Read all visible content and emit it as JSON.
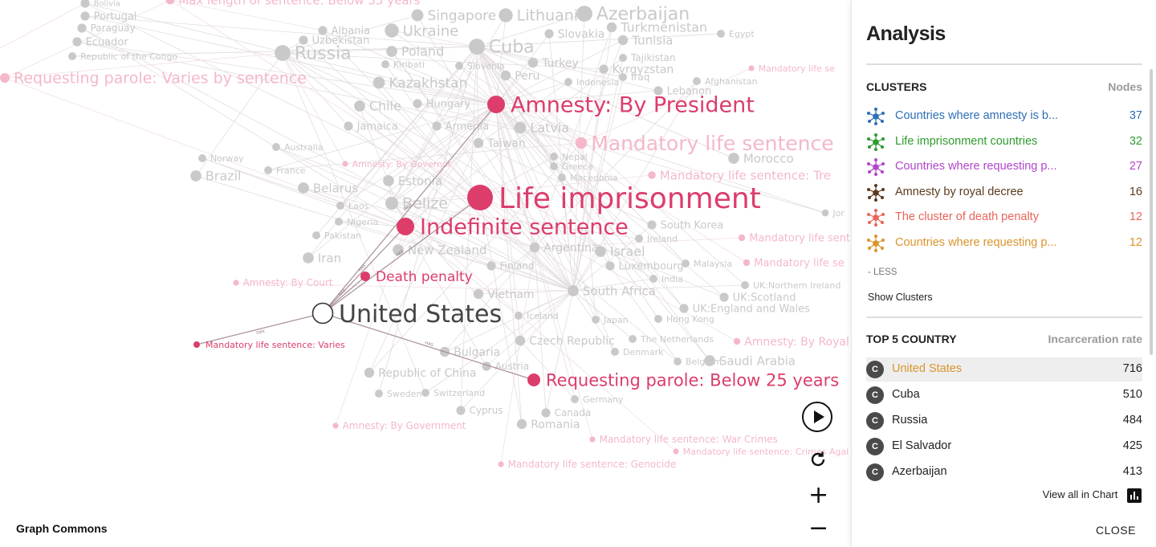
{
  "brand": "Graph Commons",
  "graph": {
    "highlight_color": "#dc3d6a",
    "faded_pink": "#f4b8c8",
    "faded_gray": "#c9c9c9",
    "focus_node": "United States",
    "highlight_nodes": [
      "Amnesty: By President",
      "Life imprisonment",
      "Indefinite sentence",
      "Death penalty",
      "Mandatory life sentence: Varies",
      "Requesting parole: Below 25 years"
    ],
    "edge_labels": [
      "HAS",
      "HAS",
      "HAS",
      "HAS",
      "HAS",
      "HAS"
    ],
    "pink_labels": [
      "Max length of sentence: Below 35 years",
      "Requesting parole: Varies by sentence",
      "Mandatory life sentence",
      "Mandatory life sentence: Tre",
      "Mandatory life sentence",
      "Mandatory life se",
      "Mandatory life se",
      "Amnesty: By Governor",
      "Amnesty: By Court",
      "Amnesty: By Royal",
      "Amnesty: By Government",
      "Mandatory life sentence: War Crimes",
      "Mandatory life sentence: Crimes Agai",
      "Mandatory life sentence: Genocide"
    ],
    "gray_labels": [
      "Bolivia",
      "Portugal",
      "Paraguay",
      "Ecuador",
      "Republic of the Congo",
      "Singapore",
      "Lithuania",
      "Azerbaijan",
      "Turkmenistan",
      "Albania",
      "Ukraine",
      "Slovakia",
      "Tunisia",
      "Egypt",
      "Uzbekistan",
      "Cuba",
      "Russia",
      "Poland",
      "Kiribati",
      "Turkey",
      "Tajikistan",
      "Slovenia",
      "Peru",
      "Kyrgyzstan",
      "Indonesia",
      "Iraq",
      "Afghanistan",
      "Kazakhstan",
      "Lebanon",
      "Chile",
      "Hungary",
      "Latvia",
      "Jamaica",
      "Armenia",
      "Taiwan",
      "Australia",
      "Nepal",
      "Greece",
      "Norway",
      "France",
      "Morocco",
      "Brazil",
      "Estonia",
      "Macedonia",
      "Belarus",
      "Belize",
      "Laos",
      "Nigeria",
      "Jor",
      "Pakistan",
      "South Korea",
      "Ireland",
      "Argentina",
      "Israel",
      "New Zealand",
      "Iran",
      "Finland",
      "Luxembourg",
      "Malaysia",
      "India",
      "South Africa",
      "UK:Northern Ireland",
      "Vietnam",
      "UK:Scotland",
      "UK:England and Wales",
      "Iceland",
      "Japan",
      "Hong Kong",
      "The Netherlands",
      "Czech Republic",
      "Denmark",
      "Bulgaria",
      "Belgium",
      "Saudi Arabia",
      "Austria",
      "Republic of China",
      "Sweden",
      "Switzerland",
      "Germany",
      "Cyprus",
      "Canada",
      "Romania"
    ]
  },
  "controls": {
    "play_icon": "play-icon",
    "refresh_icon": "refresh-icon",
    "zoom_in": "+",
    "zoom_out": "−"
  },
  "panel": {
    "title": "Analysis",
    "clusters_header": "CLUSTERS",
    "clusters_col": "Nodes",
    "clusters": [
      {
        "name": "Countries where amnesty is b...",
        "count": "37",
        "color": "#2e6fb5"
      },
      {
        "name": "Life imprisonment countries",
        "count": "32",
        "color": "#2f9a2f"
      },
      {
        "name": "Countries where requesting p...",
        "count": "27",
        "color": "#b046c9"
      },
      {
        "name": "Amnesty by royal decree",
        "count": "16",
        "color": "#5b3a1e"
      },
      {
        "name": "The cluster of death penalty",
        "count": "12",
        "color": "#e8655a"
      },
      {
        "name": "Countries where requesting p...",
        "count": "12",
        "color": "#d9952d"
      }
    ],
    "less_label": "- LESS",
    "show_clusters": "Show Clusters",
    "top_header": "TOP 5 COUNTRY",
    "top_col": "Incarceration rate",
    "badge_letter": "C",
    "top": [
      {
        "name": "United States",
        "value": "716",
        "selected": true
      },
      {
        "name": "Cuba",
        "value": "510"
      },
      {
        "name": "Russia",
        "value": "484"
      },
      {
        "name": "El Salvador",
        "value": "425"
      },
      {
        "name": "Azerbaijan",
        "value": "413"
      }
    ],
    "top_selected_color": "#d9952d",
    "view_all": "View all in Chart",
    "close": "CLOSE"
  }
}
